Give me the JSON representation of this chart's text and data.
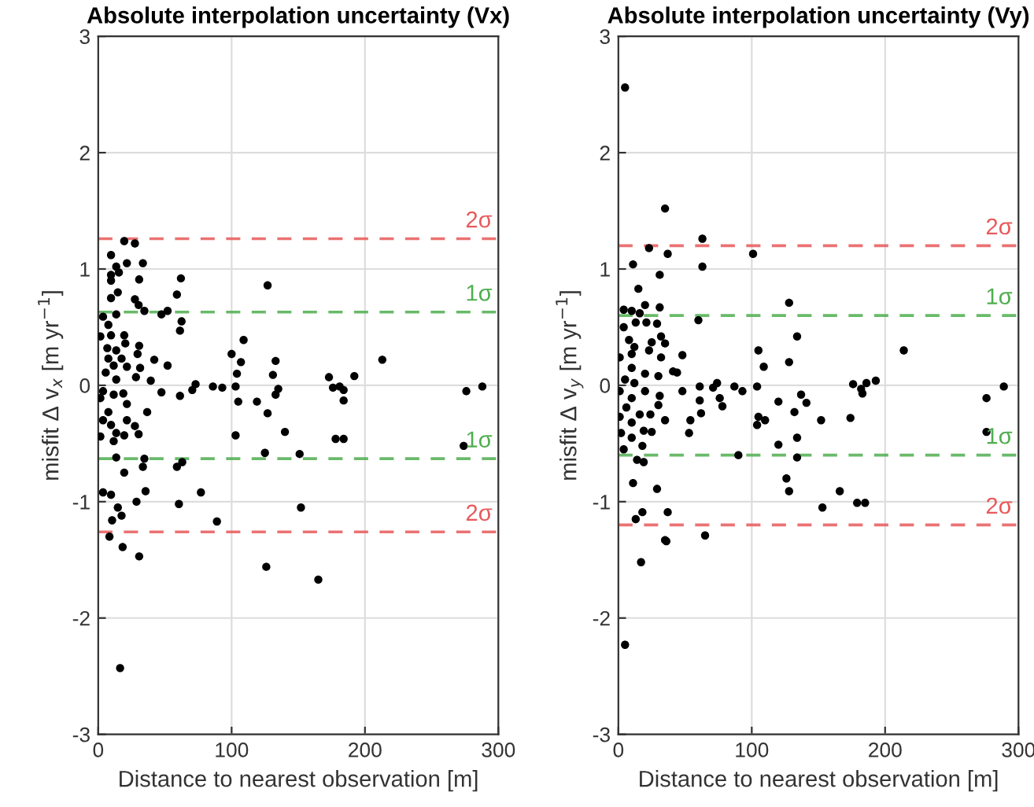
{
  "chart_data": [
    {
      "type": "scatter",
      "title": "Absolute interpolation uncertainty (Vx)",
      "xlabel": "Distance to nearest observation [m]",
      "ylabel": "misfit Δ v$_{x}$ [m yr$^{−1}$]",
      "xlim": [
        0,
        300
      ],
      "ylim": [
        -3,
        3
      ],
      "xticks": [
        0,
        100,
        200,
        300
      ],
      "yticks": [
        -3,
        -2,
        -1,
        0,
        1,
        2,
        3
      ],
      "grid": true,
      "marker": "circle",
      "series": [
        {
          "color": "#000000",
          "x": [
            19.5,
            27.5,
            9.6,
            21.5,
            33.5,
            13.5,
            9.6,
            15.5,
            30.7,
            62,
            9.6,
            127,
            14.7,
            9.6,
            59,
            27.5,
            30.3,
            34.6,
            47.4,
            52,
            13.5,
            3.6,
            7.6,
            62.5,
            61.3,
            1.6,
            9.6,
            19.5,
            109,
            20.3,
            30.7,
            6.8,
            13.5,
            100,
            29.5,
            7.6,
            17.5,
            42,
            107,
            133,
            11.6,
            52,
            21.5,
            31.4,
            5.6,
            104,
            131,
            28.3,
            13.5,
            39.4,
            73,
            86,
            93,
            103,
            70.5,
            135,
            3.6,
            47.4,
            11.6,
            18.8,
            61.3,
            133,
            105,
            119,
            1.6,
            21.5,
            7.6,
            36.7,
            127,
            3.6,
            21.5,
            9.6,
            27.5,
            140,
            13.5,
            30.3,
            1.6,
            19.5,
            103,
            11.6,
            125,
            13.5,
            34.6,
            63,
            59,
            33.5,
            19.5,
            35.5,
            77,
            3.6,
            9.6,
            213,
            173,
            192,
            176,
            181,
            184,
            184,
            276,
            288,
            178,
            184,
            151,
            274,
            28.7,
            14.7,
            60.5,
            17.5,
            10.4,
            89,
            152,
            8.4,
            18.3,
            30.7,
            126,
            165,
            16.4
          ],
          "values": [
            1.24,
            1.22,
            1.12,
            1.05,
            1.05,
            1.02,
            0.95,
            0.97,
            0.91,
            0.92,
            0.9,
            0.86,
            0.8,
            0.75,
            0.78,
            0.74,
            0.69,
            0.64,
            0.61,
            0.64,
            0.61,
            0.59,
            0.52,
            0.55,
            0.47,
            0.42,
            0.43,
            0.43,
            0.39,
            0.36,
            0.34,
            0.32,
            0.3,
            0.27,
            0.27,
            0.23,
            0.23,
            0.22,
            0.2,
            0.21,
            0.17,
            0.17,
            0.16,
            0.15,
            0.11,
            0.1,
            0.09,
            0.07,
            0.05,
            0.04,
            0.01,
            -0.01,
            -0.02,
            -0.01,
            -0.04,
            -0.03,
            -0.05,
            -0.06,
            -0.08,
            -0.07,
            -0.09,
            -0.08,
            -0.14,
            -0.14,
            -0.11,
            -0.16,
            -0.23,
            -0.23,
            -0.24,
            -0.3,
            -0.3,
            -0.34,
            -0.35,
            -0.4,
            -0.41,
            -0.42,
            -0.44,
            -0.43,
            -0.43,
            -0.48,
            -0.58,
            -0.62,
            -0.63,
            -0.66,
            -0.7,
            -0.7,
            -0.75,
            -0.91,
            -0.92,
            -0.92,
            -0.94,
            0.22,
            0.07,
            0.08,
            -0.02,
            -0.01,
            -0.04,
            -0.13,
            -0.05,
            -0.01,
            -0.46,
            -0.46,
            -0.59,
            -0.52,
            -1.0,
            -1.05,
            -1.02,
            -1.12,
            -1.16,
            -1.17,
            -1.05,
            -1.3,
            -1.39,
            -1.47,
            -1.56,
            -1.67,
            -2.43
          ]
        }
      ],
      "ref_lines": [
        {
          "axis": "y",
          "value": 1.26,
          "label": "2σ",
          "color": "#e8595b",
          "line_style": "dashed"
        },
        {
          "axis": "y",
          "value": 0.63,
          "label": "1σ",
          "color": "#4fae4f",
          "line_style": "dashed"
        },
        {
          "axis": "y",
          "value": -0.63,
          "label": "1σ",
          "color": "#4fae4f",
          "line_style": "dashed"
        },
        {
          "axis": "y",
          "value": -1.26,
          "label": "2σ",
          "color": "#e8595b",
          "line_style": "dashed"
        }
      ]
    },
    {
      "type": "scatter",
      "title": "Absolute interpolation uncertainty (Vy)",
      "xlabel": "Distance to nearest observation [m]",
      "ylabel": "misfit Δ v$_{y}$ [m yr$^{−1}$]",
      "xlim": [
        0,
        300
      ],
      "ylim": [
        -3,
        3
      ],
      "xticks": [
        0,
        100,
        200,
        300
      ],
      "yticks": [
        -3,
        -2,
        -1,
        0,
        1,
        2,
        3
      ],
      "grid": true,
      "marker": "circle",
      "series": [
        {
          "color": "#000000",
          "x": [
            5,
            35,
            63,
            23,
            37,
            101,
            11,
            63,
            31,
            15,
            128,
            20,
            4,
            31,
            10,
            16,
            60,
            4,
            13,
            21,
            29,
            32,
            134,
            8,
            25,
            35,
            12,
            105,
            10,
            23,
            1,
            48,
            32,
            109,
            128,
            10,
            41,
            44,
            20,
            30,
            5,
            12,
            74,
            87,
            104,
            71,
            20,
            48,
            61,
            93,
            137,
            1,
            31,
            76,
            10,
            61,
            120,
            141,
            78,
            30,
            6,
            16,
            62,
            132,
            24,
            105,
            110,
            35,
            54,
            1,
            10,
            104,
            19,
            25,
            53,
            2,
            10,
            134,
            18,
            120,
            4,
            90,
            14,
            19,
            134,
            126,
            11,
            128,
            29,
            214,
            176,
            186,
            193,
            183,
            182,
            289,
            276,
            152,
            174,
            276,
            166,
            18,
            13,
            37,
            153,
            179,
            185,
            35,
            36,
            65,
            17,
            5
          ],
          "values": [
            2.56,
            1.52,
            1.26,
            1.18,
            1.13,
            1.13,
            1.04,
            1.02,
            0.95,
            0.83,
            0.71,
            0.69,
            0.65,
            0.67,
            0.64,
            0.62,
            0.56,
            0.5,
            0.54,
            0.54,
            0.53,
            0.42,
            0.42,
            0.39,
            0.37,
            0.36,
            0.33,
            0.3,
            0.27,
            0.3,
            0.24,
            0.26,
            0.24,
            0.16,
            0.2,
            0.15,
            0.12,
            0.11,
            0.1,
            0.08,
            0.05,
            0.02,
            0.02,
            -0.01,
            -0.01,
            -0.02,
            -0.05,
            -0.05,
            -0.01,
            -0.05,
            -0.08,
            -0.05,
            -0.09,
            -0.11,
            -0.11,
            -0.13,
            -0.14,
            -0.15,
            -0.18,
            -0.17,
            -0.19,
            -0.25,
            -0.24,
            -0.23,
            -0.25,
            -0.27,
            -0.3,
            -0.3,
            -0.3,
            -0.27,
            -0.32,
            -0.34,
            -0.39,
            -0.4,
            -0.41,
            -0.41,
            -0.45,
            -0.45,
            -0.52,
            -0.51,
            -0.55,
            -0.6,
            -0.64,
            -0.66,
            -0.62,
            -0.8,
            -0.84,
            -0.91,
            -0.89,
            0.3,
            0.01,
            0.02,
            0.04,
            -0.07,
            -0.03,
            -0.01,
            -0.11,
            -0.3,
            -0.28,
            -0.4,
            -0.91,
            -1.09,
            -1.15,
            -1.09,
            -1.05,
            -1.01,
            -1.01,
            -1.33,
            -1.34,
            -1.29,
            -1.52,
            -2.23
          ]
        }
      ],
      "ref_lines": [
        {
          "axis": "y",
          "value": 1.2,
          "label": "2σ",
          "color": "#e8595b",
          "line_style": "dashed"
        },
        {
          "axis": "y",
          "value": 0.6,
          "label": "1σ",
          "color": "#4fae4f",
          "line_style": "dashed"
        },
        {
          "axis": "y",
          "value": -0.6,
          "label": "1σ",
          "color": "#4fae4f",
          "line_style": "dashed"
        },
        {
          "axis": "y",
          "value": -1.2,
          "label": "2σ",
          "color": "#e8595b",
          "line_style": "dashed"
        }
      ]
    }
  ]
}
